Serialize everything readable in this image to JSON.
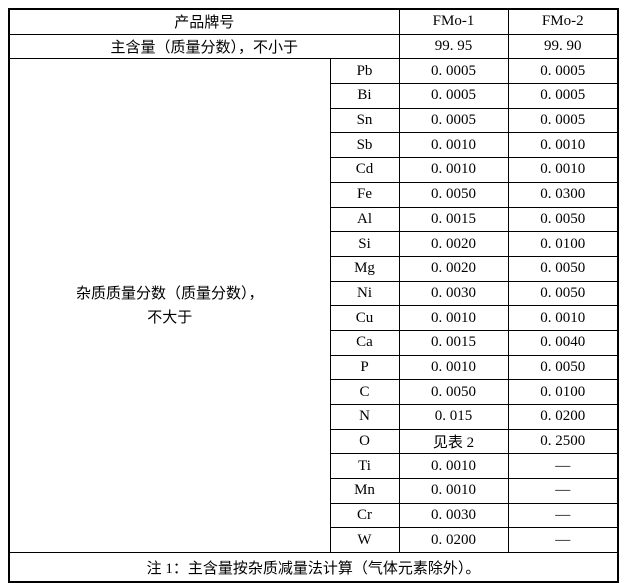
{
  "table": {
    "header": {
      "product_label": "产品牌号",
      "grades": [
        "FMo-1",
        "FMo-2"
      ]
    },
    "main_content": {
      "label": "主含量（质量分数），不小于",
      "values": [
        "99. 95",
        "99. 90"
      ]
    },
    "impurities": {
      "label": "杂质质量分数（质量分数），\n不大于",
      "rows": [
        {
          "element": "Pb",
          "fmo1": "0. 0005",
          "fmo2": "0. 0005"
        },
        {
          "element": "Bi",
          "fmo1": "0. 0005",
          "fmo2": "0. 0005"
        },
        {
          "element": "Sn",
          "fmo1": "0. 0005",
          "fmo2": "0. 0005"
        },
        {
          "element": "Sb",
          "fmo1": "0. 0010",
          "fmo2": "0. 0010"
        },
        {
          "element": "Cd",
          "fmo1": "0. 0010",
          "fmo2": "0. 0010"
        },
        {
          "element": "Fe",
          "fmo1": "0. 0050",
          "fmo2": "0. 0300"
        },
        {
          "element": "Al",
          "fmo1": "0. 0015",
          "fmo2": "0. 0050"
        },
        {
          "element": "Si",
          "fmo1": "0. 0020",
          "fmo2": "0. 0100"
        },
        {
          "element": "Mg",
          "fmo1": "0. 0020",
          "fmo2": "0. 0050"
        },
        {
          "element": "Ni",
          "fmo1": "0. 0030",
          "fmo2": "0. 0050"
        },
        {
          "element": "Cu",
          "fmo1": "0. 0010",
          "fmo2": "0. 0010"
        },
        {
          "element": "Ca",
          "fmo1": "0. 0015",
          "fmo2": "0. 0040"
        },
        {
          "element": "P",
          "fmo1": "0. 0010",
          "fmo2": "0. 0050"
        },
        {
          "element": "C",
          "fmo1": "0. 0050",
          "fmo2": "0. 0100"
        },
        {
          "element": "N",
          "fmo1": "0. 015",
          "fmo2": "0. 0200"
        },
        {
          "element": "O",
          "fmo1": "见表 2",
          "fmo2": "0. 2500"
        },
        {
          "element": "Ti",
          "fmo1": "0. 0010",
          "fmo2": "—"
        },
        {
          "element": "Mn",
          "fmo1": "0. 0010",
          "fmo2": "—"
        },
        {
          "element": "Cr",
          "fmo1": "0. 0030",
          "fmo2": "—"
        },
        {
          "element": "W",
          "fmo1": "0. 0200",
          "fmo2": "—"
        }
      ]
    },
    "note": "注 1：主含量按杂质减量法计算（气体元素除外）。"
  },
  "colors": {
    "border": "#000000",
    "text": "#000000",
    "background": "#ffffff"
  }
}
